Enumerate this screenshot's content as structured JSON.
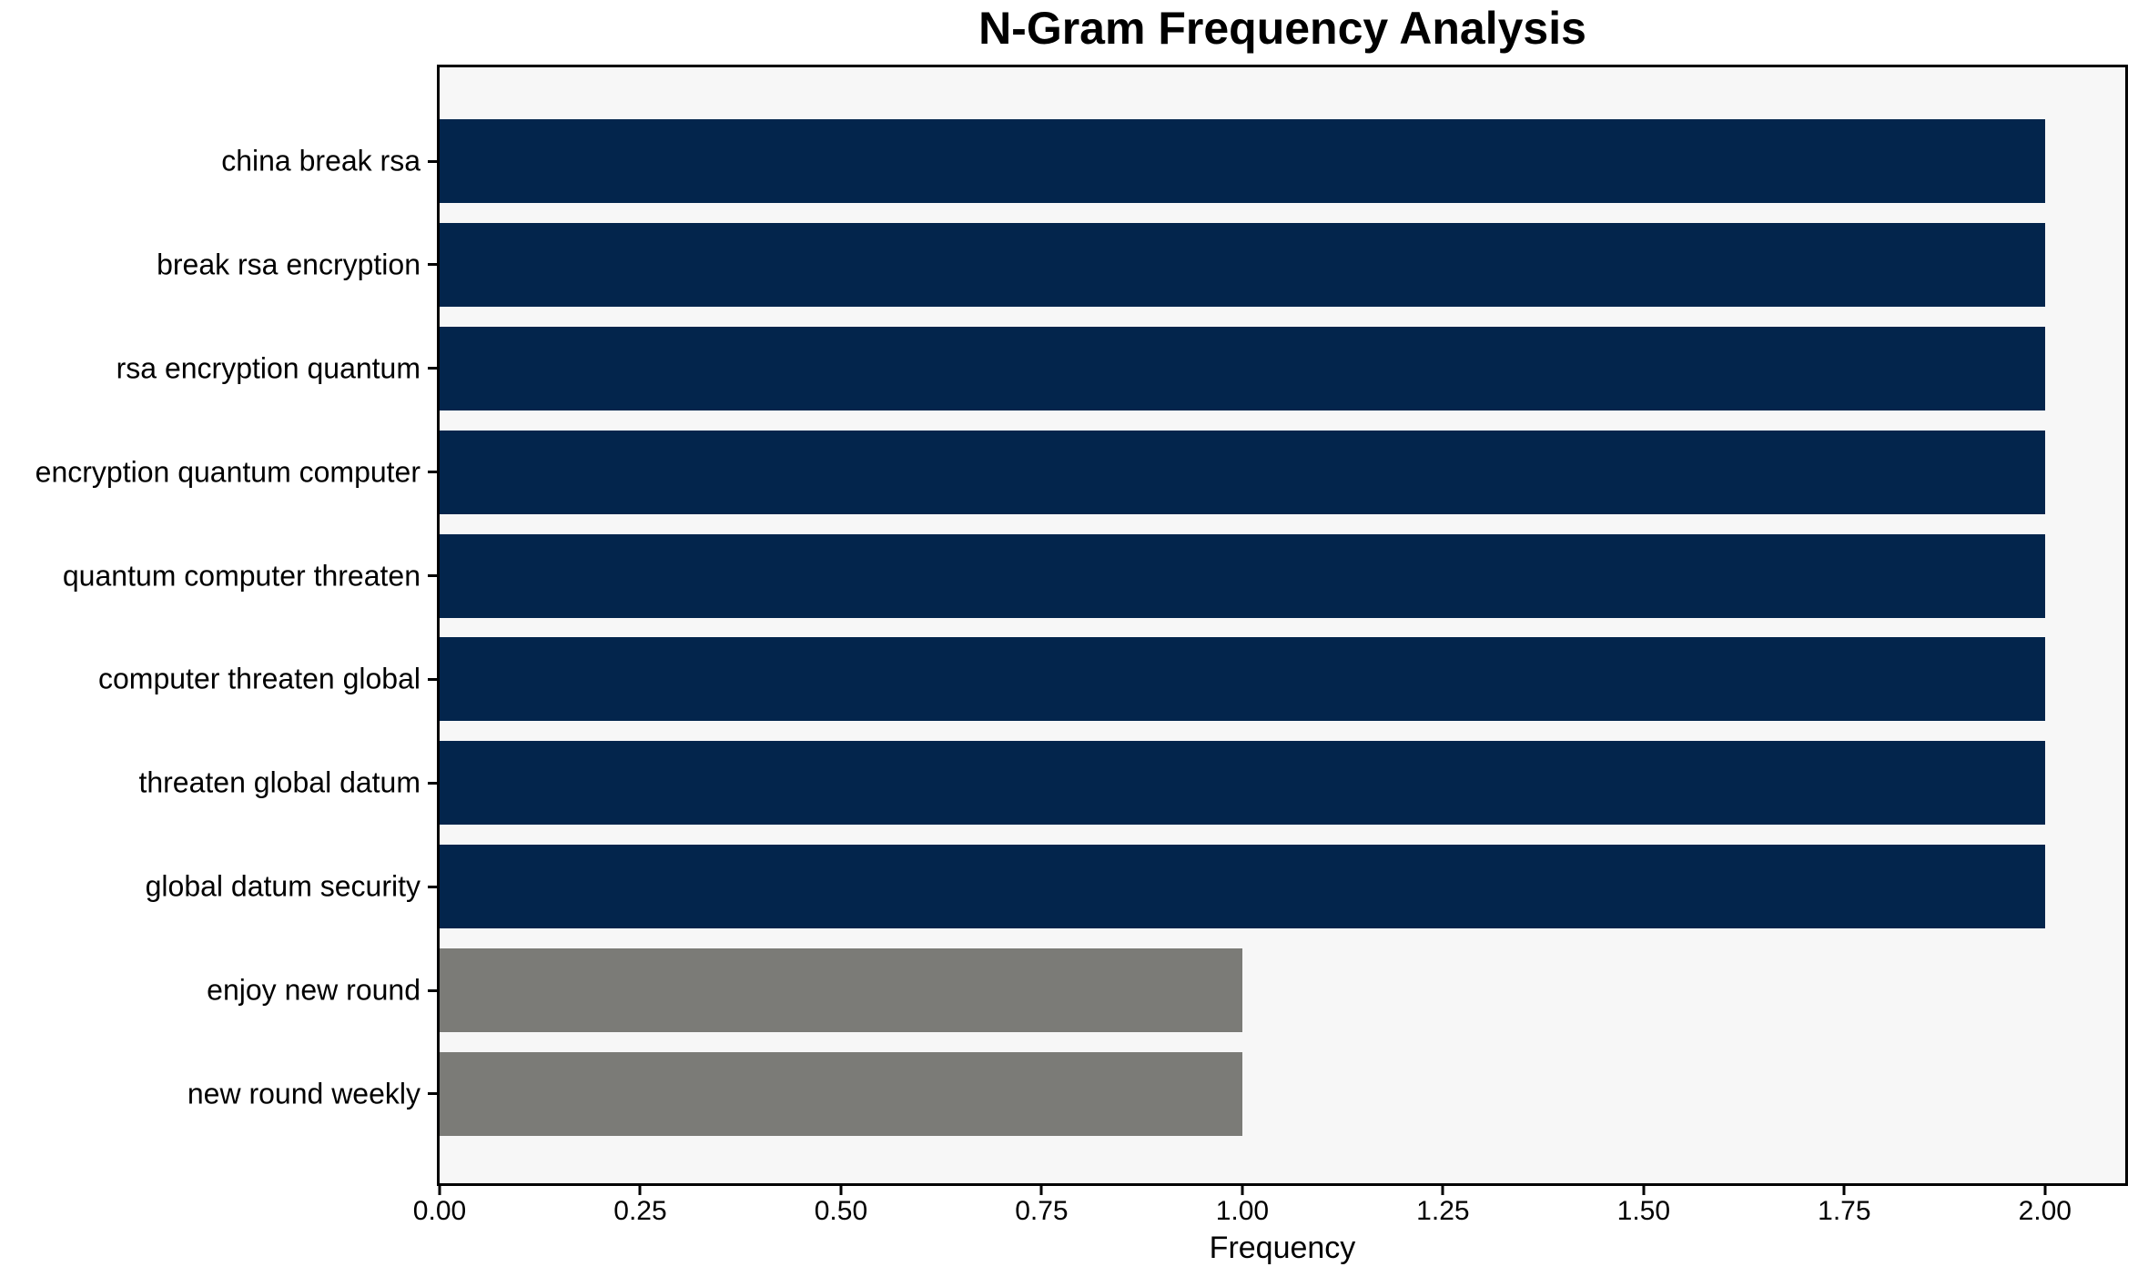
{
  "chart_data": {
    "type": "bar",
    "orientation": "horizontal",
    "title": "N-Gram Frequency Analysis",
    "xlabel": "Frequency",
    "ylabel": "",
    "categories": [
      "china break rsa",
      "break rsa encryption",
      "rsa encryption quantum",
      "encryption quantum computer",
      "quantum computer threaten",
      "computer threaten global",
      "threaten global datum",
      "global datum security",
      "enjoy new round",
      "new round weekly"
    ],
    "values": [
      2,
      2,
      2,
      2,
      2,
      2,
      2,
      2,
      1,
      1
    ],
    "bar_colors": [
      "#03254c",
      "#03254c",
      "#03254c",
      "#03254c",
      "#03254c",
      "#03254c",
      "#03254c",
      "#03254c",
      "#7b7b77",
      "#7b7b77"
    ],
    "xlim": [
      0,
      2.1
    ],
    "xticks": [
      0.0,
      0.25,
      0.5,
      0.75,
      1.0,
      1.25,
      1.5,
      1.75,
      2.0
    ],
    "xtick_labels": [
      "0.00",
      "0.25",
      "0.50",
      "0.75",
      "1.00",
      "1.25",
      "1.50",
      "1.75",
      "2.00"
    ],
    "grid": false,
    "legend": null,
    "colors": {
      "high_freq_bar": "#03254c",
      "low_freq_bar": "#7b7b77",
      "plot_background": "#f7f7f7",
      "figure_background": "#ffffff",
      "spine": "#000000",
      "text": "#000000"
    }
  }
}
